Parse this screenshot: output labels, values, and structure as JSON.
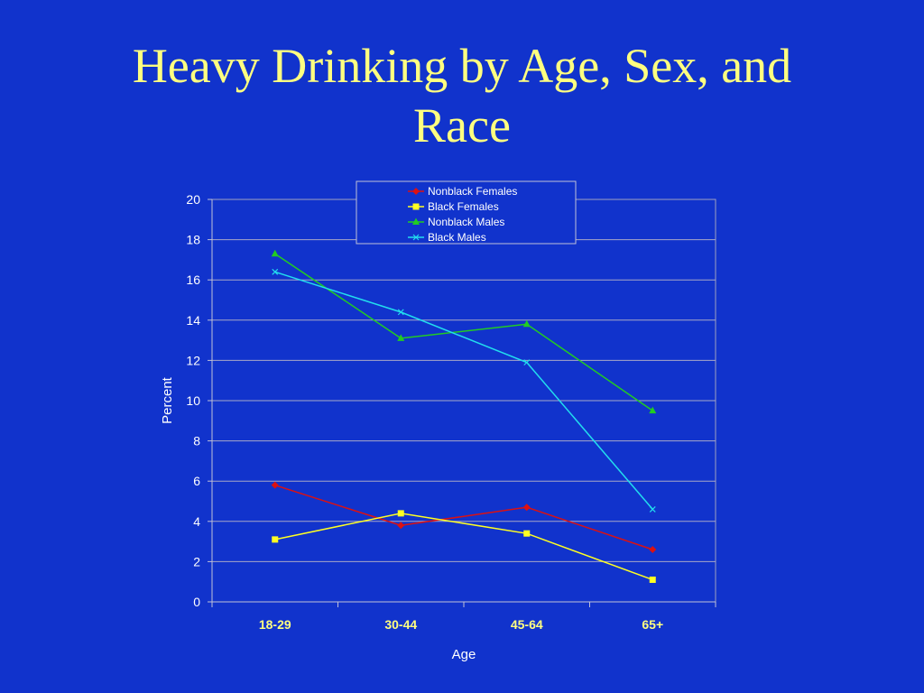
{
  "slide": {
    "title_line1": "Heavy Drinking by Age, Sex, and",
    "title_line2": "Race",
    "background": "#1133cc",
    "title_color": "#ffff80"
  },
  "chart_data": {
    "type": "line",
    "title": "",
    "xlabel": "Age",
    "ylabel": "Percent",
    "categories": [
      "18-29",
      "30-44",
      "45-64",
      "65+"
    ],
    "ylim": [
      0,
      20
    ],
    "yticks": [
      0,
      2,
      4,
      6,
      8,
      10,
      12,
      14,
      16,
      18,
      20
    ],
    "grid": true,
    "legend_position": "top-center",
    "series": [
      {
        "name": "Nonblack Females",
        "color": "#dd1111",
        "marker": "diamond",
        "values": [
          5.8,
          3.8,
          4.7,
          2.6
        ]
      },
      {
        "name": "Black Females",
        "color": "#ffff22",
        "marker": "square",
        "values": [
          3.1,
          4.4,
          3.4,
          1.1
        ]
      },
      {
        "name": "Nonblack Males",
        "color": "#22cc22",
        "marker": "triangle",
        "values": [
          17.3,
          13.1,
          13.8,
          9.5
        ]
      },
      {
        "name": "Black Males",
        "color": "#22ddee",
        "marker": "x",
        "values": [
          16.4,
          14.4,
          11.9,
          4.6
        ]
      }
    ]
  }
}
